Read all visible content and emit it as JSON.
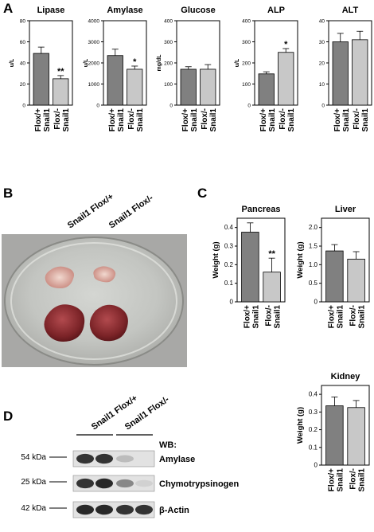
{
  "panels": {
    "A": "A",
    "B": "B",
    "C": "C",
    "D": "D"
  },
  "group_labels": [
    "Snail1 Flox/+",
    "Snail1 Flox/-"
  ],
  "colors": {
    "flox_plus": "#808080",
    "flox_minus": "#c8c8c8",
    "axis": "#000000"
  },
  "chart_data": [
    {
      "id": "lipase",
      "type": "bar",
      "title": "Lipase",
      "ylabel": "u/L",
      "categories": [
        "Snail1 Flox/+",
        "Snail1 Flox/-"
      ],
      "values": [
        49,
        25
      ],
      "errors": [
        6,
        3
      ],
      "ylim": [
        0,
        80
      ],
      "yticks": [
        "0",
        "20",
        "40",
        "60",
        "80"
      ],
      "sig": [
        "",
        "**"
      ]
    },
    {
      "id": "amylase",
      "type": "bar",
      "title": "Amylase",
      "ylabel": "u/L",
      "categories": [
        "Snail1 Flox/+",
        "Snail1 Flox/-"
      ],
      "values": [
        2350,
        1700
      ],
      "errors": [
        300,
        150
      ],
      "ylim": [
        0,
        4000
      ],
      "yticks": [
        "0",
        "1000",
        "2000",
        "3000",
        "4000"
      ],
      "sig": [
        "",
        "*"
      ]
    },
    {
      "id": "glucose",
      "type": "bar",
      "title": "Glucose",
      "ylabel": "mg/dL",
      "categories": [
        "Snail1 Flox/+",
        "Snail1 Flox/-"
      ],
      "values": [
        170,
        170
      ],
      "errors": [
        12,
        22
      ],
      "ylim": [
        0,
        400
      ],
      "yticks": [
        "0",
        "100",
        "200",
        "300",
        "400"
      ],
      "sig": [
        "",
        ""
      ]
    },
    {
      "id": "alp",
      "type": "bar",
      "title": "ALP",
      "ylabel": "u/L",
      "categories": [
        "Snail1 Flox/+",
        "Snail1 Flox/-"
      ],
      "values": [
        148,
        250
      ],
      "errors": [
        10,
        18
      ],
      "ylim": [
        0,
        400
      ],
      "yticks": [
        "0",
        "100",
        "200",
        "300",
        "400"
      ],
      "sig": [
        "",
        "*"
      ]
    },
    {
      "id": "alt",
      "type": "bar",
      "title": "ALT",
      "ylabel": "",
      "categories": [
        "Snail1 Flox/+",
        "Snail1 Flox/-"
      ],
      "values": [
        30,
        31
      ],
      "errors": [
        4,
        4
      ],
      "ylim": [
        0,
        40
      ],
      "yticks": [
        "0",
        "10",
        "20",
        "30",
        "40"
      ],
      "sig": [
        "",
        ""
      ]
    },
    {
      "id": "pancreas",
      "type": "bar",
      "title": "Pancreas",
      "ylabel": "Weight (g)",
      "categories": [
        "Snail1 Flox/+",
        "Snail1 Flox/-"
      ],
      "values": [
        0.375,
        0.16
      ],
      "errors": [
        0.05,
        0.075
      ],
      "ylim": [
        0,
        0.45
      ],
      "yticks": [
        "0",
        "0.1",
        "0.2",
        "0.3",
        "0.4"
      ],
      "sig": [
        "",
        "**"
      ]
    },
    {
      "id": "liver",
      "type": "bar",
      "title": "Liver",
      "ylabel": "Weight (g)",
      "categories": [
        "Snail1 Flox/+",
        "Snail1 Flox/-"
      ],
      "values": [
        1.37,
        1.15
      ],
      "errors": [
        0.17,
        0.2
      ],
      "ylim": [
        0,
        2.25
      ],
      "yticks": [
        "0",
        "0.5",
        "1.0",
        "1.5",
        "2.0"
      ],
      "sig": [
        "",
        ""
      ]
    },
    {
      "id": "kidney",
      "type": "bar",
      "title": "Kidney",
      "ylabel": "Weight (g)",
      "categories": [
        "Snail1 Flox/+",
        "Snail1 Flox/-"
      ],
      "values": [
        0.335,
        0.325
      ],
      "errors": [
        0.05,
        0.04
      ],
      "ylim": [
        0,
        0.45
      ],
      "yticks": [
        "0",
        "0.1",
        "0.2",
        "0.3",
        "0.4"
      ],
      "sig": [
        "",
        ""
      ]
    }
  ],
  "photo": {
    "labels": [
      "Snail1 Flox/+",
      "Snail1 Flox/-"
    ]
  },
  "western_blot": {
    "header": "WB:",
    "lane_labels": [
      "Snail1 Flox/+",
      "Snail1 Flox/-"
    ],
    "rows": [
      {
        "size": "54 kDa",
        "protein": "Amylase",
        "intensities": [
          0.85,
          0.85,
          0.2,
          0.0
        ]
      },
      {
        "size": "25 kDa",
        "protein": "Chymotrypsinogen",
        "intensities": [
          0.85,
          0.9,
          0.45,
          0.1
        ]
      },
      {
        "size": "42 kDa",
        "protein": "β-Actin",
        "intensities": [
          0.9,
          0.9,
          0.85,
          0.85
        ]
      }
    ]
  }
}
